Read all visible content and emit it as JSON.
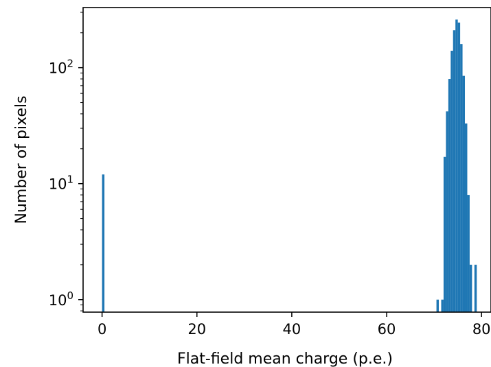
{
  "chart_data": {
    "type": "bar",
    "title": "",
    "xlabel": "Flat-field mean charge (p.e.)",
    "ylabel": "Number of pixels",
    "xlim": [
      -4,
      82
    ],
    "ylim": [
      0.78,
      330
    ],
    "y_scale": "log",
    "x_ticks": [
      0,
      20,
      40,
      60,
      80
    ],
    "x_tick_labels": [
      "0",
      "20",
      "40",
      "60",
      "80"
    ],
    "y_ticks": [
      1,
      10,
      100
    ],
    "y_tick_labels": [
      {
        "base": "10",
        "exp": "0"
      },
      {
        "base": "10",
        "exp": "1"
      },
      {
        "base": "10",
        "exp": "2"
      }
    ],
    "grid": false,
    "bin_width": 0.5,
    "bins": [
      {
        "x": 0.0,
        "count": 12
      },
      {
        "x": 70.5,
        "count": 1
      },
      {
        "x": 71.5,
        "count": 1
      },
      {
        "x": 72.0,
        "count": 17
      },
      {
        "x": 72.5,
        "count": 42
      },
      {
        "x": 73.0,
        "count": 80
      },
      {
        "x": 73.5,
        "count": 140
      },
      {
        "x": 74.0,
        "count": 210
      },
      {
        "x": 74.5,
        "count": 260
      },
      {
        "x": 75.0,
        "count": 245
      },
      {
        "x": 75.5,
        "count": 160
      },
      {
        "x": 76.0,
        "count": 85
      },
      {
        "x": 76.5,
        "count": 33
      },
      {
        "x": 77.0,
        "count": 8
      },
      {
        "x": 77.5,
        "count": 2
      },
      {
        "x": 78.5,
        "count": 2
      }
    ],
    "colors": {
      "bar": "#1f77b4",
      "axis": "#000000"
    }
  }
}
